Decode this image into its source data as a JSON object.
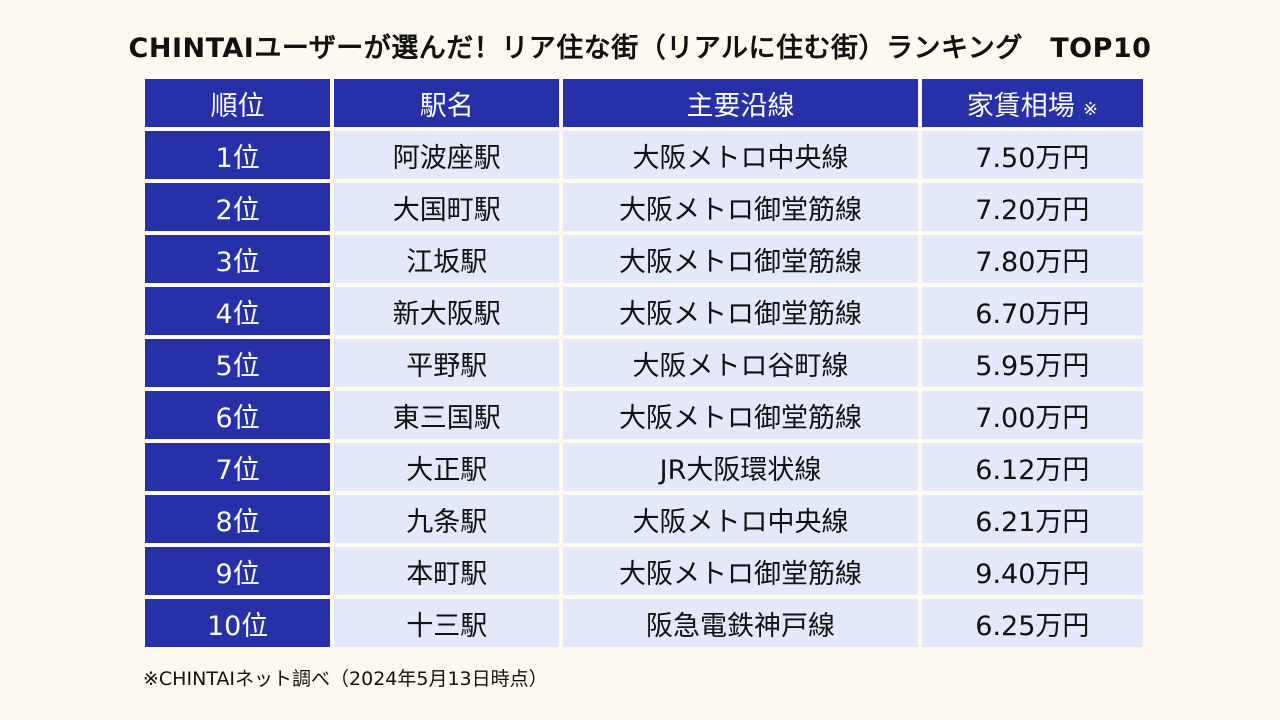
{
  "title": "CHINTAIユーザーが選んだ！リア住な街（リアルに住む街）ランキング　TOP10",
  "table": {
    "headers": {
      "rank": "順位",
      "station": "駅名",
      "line": "主要沿線",
      "rent": "家賃相場",
      "rent_note_mark": "※"
    },
    "rows": [
      {
        "rank": "1位",
        "station": "阿波座駅",
        "line": "大阪メトロ中央線",
        "rent": "7.50万円"
      },
      {
        "rank": "2位",
        "station": "大国町駅",
        "line": "大阪メトロ御堂筋線",
        "rent": "7.20万円"
      },
      {
        "rank": "3位",
        "station": "江坂駅",
        "line": "大阪メトロ御堂筋線",
        "rent": "7.80万円"
      },
      {
        "rank": "4位",
        "station": "新大阪駅",
        "line": "大阪メトロ御堂筋線",
        "rent": "6.70万円"
      },
      {
        "rank": "5位",
        "station": "平野駅",
        "line": "大阪メトロ谷町線",
        "rent": "5.95万円"
      },
      {
        "rank": "6位",
        "station": "東三国駅",
        "line": "大阪メトロ御堂筋線",
        "rent": "7.00万円"
      },
      {
        "rank": "7位",
        "station": "大正駅",
        "line": "JR大阪環状線",
        "rent": "6.12万円"
      },
      {
        "rank": "8位",
        "station": "九条駅",
        "line": "大阪メトロ中央線",
        "rent": "6.21万円"
      },
      {
        "rank": "9位",
        "station": "本町駅",
        "line": "大阪メトロ御堂筋線",
        "rent": "9.40万円"
      },
      {
        "rank": "10位",
        "station": "十三駅",
        "line": "阪急電鉄神戸線",
        "rent": "6.25万円"
      }
    ]
  },
  "footnote": "※CHINTAIネット調べ（2024年5月13日時点）",
  "colors": {
    "background": "#fdf9ef",
    "header_blue": "#2630a8",
    "cell_light": "#e3e8fa"
  }
}
